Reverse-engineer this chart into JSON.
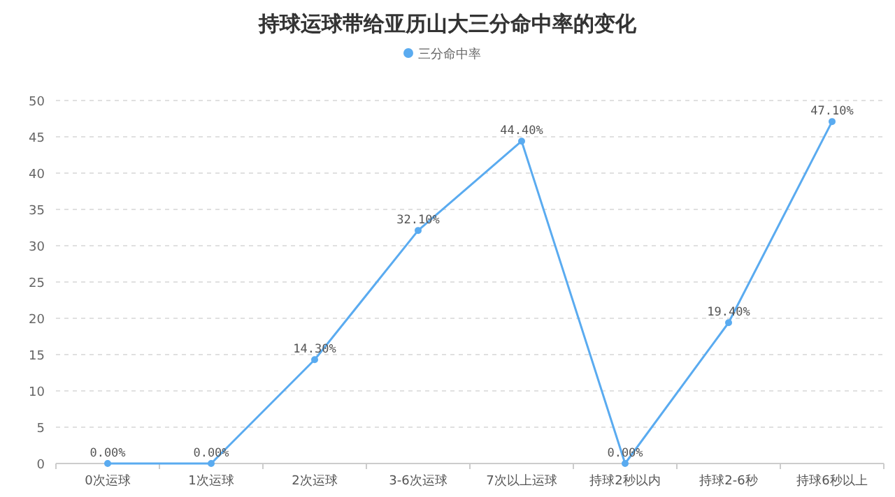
{
  "chart_data": {
    "type": "line",
    "title": "持球运球带给亚历山大三分命中率的变化",
    "categories": [
      "0次运球",
      "1次运球",
      "2次运球",
      "3-6次运球",
      "7次以上运球",
      "持球2秒以内",
      "持球2-6秒",
      "持球6秒以上"
    ],
    "series": [
      {
        "name": "三分命中率",
        "color": "#5aabf0",
        "values": [
          0,
          0,
          14.3,
          32.1,
          44.4,
          0,
          19.4,
          47.1
        ],
        "value_labels": [
          "0.00%",
          "0.00%",
          "14.30%",
          "32.10%",
          "44.40%",
          "0.00%",
          "19.40%",
          "47.10%"
        ]
      }
    ],
    "ylim": [
      0,
      50
    ],
    "yticks": [
      0,
      5,
      10,
      15,
      20,
      25,
      30,
      35,
      40,
      45,
      50
    ],
    "grid": "y",
    "legend": "top",
    "marker": "circle",
    "line_style": "solid"
  }
}
